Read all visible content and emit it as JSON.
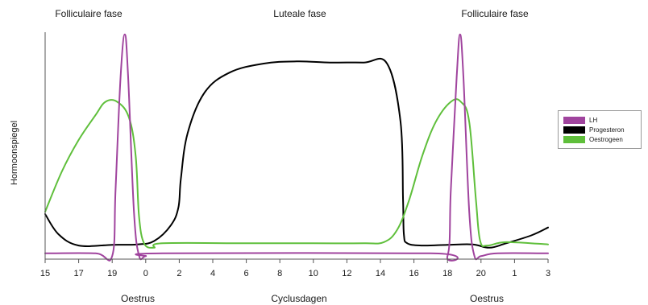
{
  "chart_data": {
    "type": "line",
    "phases": [
      "Folliculaire fase",
      "Luteale fase",
      "Folliculaire fase"
    ],
    "ylabel": "Hormoonspiegel",
    "xlabel": "Cyclusdagen",
    "x_annotations": [
      "Oestrus",
      "Oestrus"
    ],
    "x_ticks": [
      "15",
      "17",
      "19",
      "0",
      "2",
      "4",
      "6",
      "8",
      "10",
      "12",
      "14",
      "16",
      "18",
      "20",
      "1",
      "3"
    ],
    "x_range": [
      0,
      30
    ],
    "y_range": [
      0,
      100
    ],
    "grid": false,
    "legend_position": "right",
    "series": [
      {
        "name": "LH",
        "color": "#a0449e",
        "points": [
          [
            0,
            1.5
          ],
          [
            3,
            1.5
          ],
          [
            4,
            0.3
          ],
          [
            4.2,
            30
          ],
          [
            4.5,
            80
          ],
          [
            4.75,
            99
          ],
          [
            4.95,
            80
          ],
          [
            5.3,
            20
          ],
          [
            5.6,
            0.5
          ],
          [
            6,
            0.3
          ],
          [
            7,
            1.5
          ],
          [
            23,
            1.5
          ],
          [
            24,
            0.3
          ],
          [
            24.2,
            30
          ],
          [
            24.55,
            80
          ],
          [
            24.75,
            99
          ],
          [
            24.95,
            80
          ],
          [
            25.3,
            20
          ],
          [
            25.6,
            0.5
          ],
          [
            26,
            0.3
          ],
          [
            27,
            1.5
          ],
          [
            30,
            1.5
          ]
        ]
      },
      {
        "name": "Progesteron",
        "color": "#000000",
        "points": [
          [
            0,
            19
          ],
          [
            0.8,
            10
          ],
          [
            2,
            5
          ],
          [
            4,
            5.3
          ],
          [
            5.5,
            5.5
          ],
          [
            6.5,
            7
          ],
          [
            7.5,
            14
          ],
          [
            7.95,
            22
          ],
          [
            8.1,
            35
          ],
          [
            8.5,
            55
          ],
          [
            9.5,
            73
          ],
          [
            11,
            82
          ],
          [
            13,
            86
          ],
          [
            15,
            87
          ],
          [
            17,
            86.5
          ],
          [
            19,
            86.5
          ],
          [
            20.4,
            86
          ],
          [
            21.2,
            60
          ],
          [
            21.35,
            25
          ],
          [
            21.4,
            10
          ],
          [
            21.6,
            6
          ],
          [
            22.5,
            5
          ],
          [
            24,
            5.3
          ],
          [
            25.5,
            5.5
          ],
          [
            26.5,
            4
          ],
          [
            27.5,
            6
          ],
          [
            29,
            9.5
          ],
          [
            30,
            13
          ]
        ]
      },
      {
        "name": "Oestrogeen",
        "color": "#5fbf3b",
        "points": [
          [
            0,
            20
          ],
          [
            1,
            38
          ],
          [
            2,
            52
          ],
          [
            3,
            63
          ],
          [
            3.6,
            69
          ],
          [
            4.3,
            69
          ],
          [
            5,
            62
          ],
          [
            5.4,
            45
          ],
          [
            5.6,
            18
          ],
          [
            5.9,
            6
          ],
          [
            6.5,
            4
          ],
          [
            7,
            6
          ],
          [
            12,
            6
          ],
          [
            16,
            6
          ],
          [
            19,
            6
          ],
          [
            20.2,
            6.5
          ],
          [
            21,
            12
          ],
          [
            21.7,
            25
          ],
          [
            22.5,
            45
          ],
          [
            23.3,
            60
          ],
          [
            24.2,
            69
          ],
          [
            24.8,
            69
          ],
          [
            25.3,
            60
          ],
          [
            25.7,
            25
          ],
          [
            25.95,
            7
          ],
          [
            26.4,
            5
          ],
          [
            27.5,
            6.5
          ],
          [
            30,
            5.5
          ]
        ]
      }
    ]
  }
}
